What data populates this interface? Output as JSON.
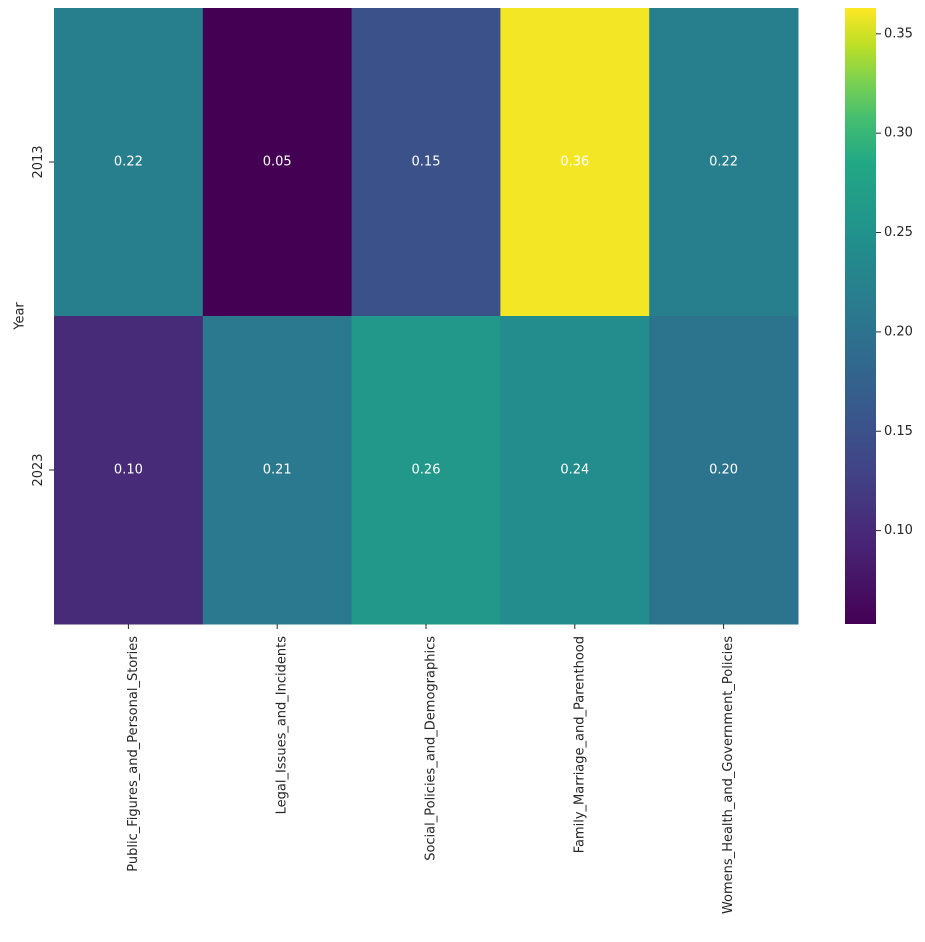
{
  "chart_data": {
    "type": "heatmap",
    "title": "",
    "xlabel": "",
    "ylabel": "Year",
    "rows": [
      "2013",
      "2023"
    ],
    "columns": [
      "Public_Figures_and_Personal_Stories",
      "Legal_Issues_and_Incidents",
      "Social_Policies_and_Demographics",
      "Family_Marriage_and_Parenthood",
      "Womens_Health_and_Government_Policies"
    ],
    "values": [
      [
        0.22,
        0.05,
        0.15,
        0.36,
        0.22
      ],
      [
        0.1,
        0.21,
        0.26,
        0.24,
        0.2
      ]
    ],
    "display_values": [
      [
        "0.22",
        "0.05",
        "0.15",
        "0.36",
        "0.22"
      ],
      [
        "0.10",
        "0.21",
        "0.26",
        "0.24",
        "0.20"
      ]
    ],
    "colormap": "viridis",
    "colorbar": {
      "range": [
        0.053,
        0.363
      ],
      "ticks": [
        0.1,
        0.15,
        0.2,
        0.25,
        0.3,
        0.35
      ],
      "tick_labels": [
        "0.10",
        "0.15",
        "0.20",
        "0.25",
        "0.30",
        "0.35"
      ]
    },
    "annotation_color": "#ffffff"
  }
}
